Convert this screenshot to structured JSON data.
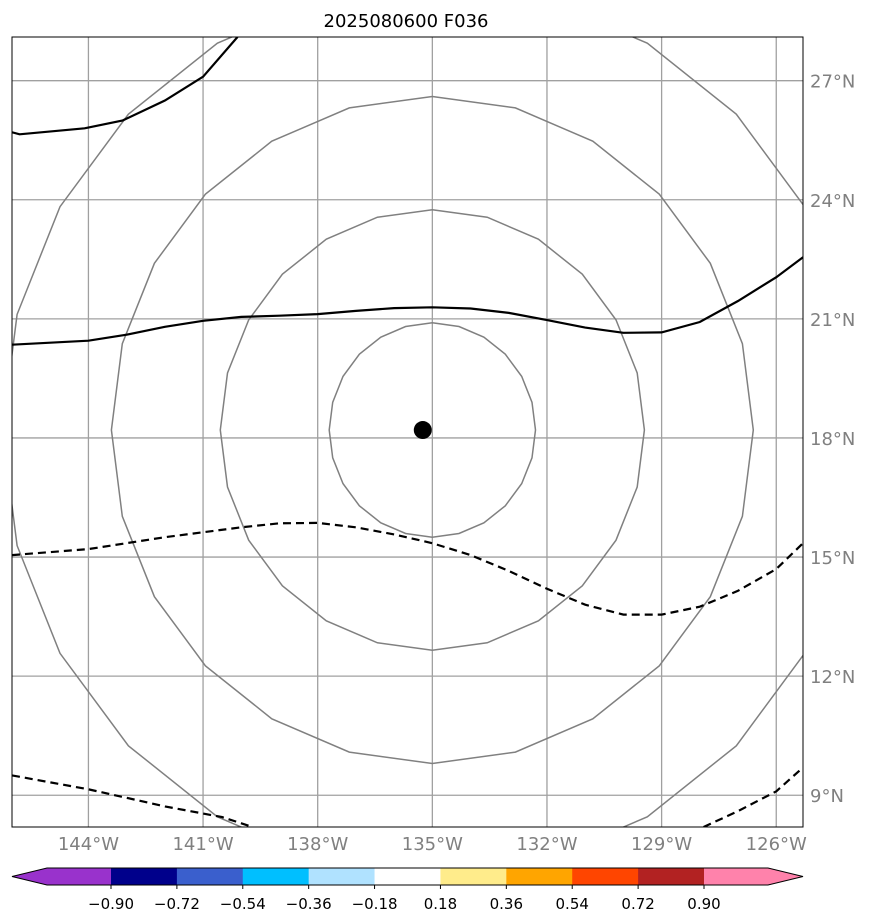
{
  "title": "2025080600 F036",
  "map": {
    "projection": "lat-lon",
    "lon_range": [
      -146,
      -125.3
    ],
    "lat_range": [
      8.2,
      28.1
    ],
    "grid": true,
    "lat_ticks": [
      {
        "value": 9,
        "label": "9°N"
      },
      {
        "value": 12,
        "label": "12°N"
      },
      {
        "value": 15,
        "label": "15°N"
      },
      {
        "value": 18,
        "label": "18°N"
      },
      {
        "value": 21,
        "label": "21°N"
      },
      {
        "value": 24,
        "label": "24°N"
      },
      {
        "value": 27,
        "label": "27°N"
      }
    ],
    "lon_ticks": [
      {
        "value": -144,
        "label": "144°W"
      },
      {
        "value": -141,
        "label": "141°W"
      },
      {
        "value": -138,
        "label": "138°W"
      },
      {
        "value": -135,
        "label": "135°W"
      },
      {
        "value": -132,
        "label": "132°W"
      },
      {
        "value": -129,
        "label": "129°W"
      },
      {
        "value": -126,
        "label": "126°W"
      }
    ],
    "center_marker": {
      "lon": -135.25,
      "lat": 18.2
    },
    "range_rings": {
      "center": {
        "lon": -135,
        "lat": 18.2
      },
      "radii_deg": [
        2.7,
        5.55,
        8.4,
        11.25
      ],
      "color": "#808080"
    },
    "solid_contours": [
      [
        [
          -146,
          25.7
        ],
        [
          -145.8,
          25.65
        ],
        [
          -144.1,
          25.8
        ],
        [
          -143.1,
          26.0
        ],
        [
          -142.0,
          26.5
        ],
        [
          -141.0,
          27.1
        ],
        [
          -140.1,
          28.1
        ]
      ],
      [
        [
          -146,
          20.35
        ],
        [
          -144.0,
          20.45
        ],
        [
          -143.0,
          20.6
        ],
        [
          -142.0,
          20.8
        ],
        [
          -141.0,
          20.95
        ],
        [
          -140.0,
          21.05
        ],
        [
          -139.0,
          21.08
        ],
        [
          -138.0,
          21.12
        ],
        [
          -137.0,
          21.2
        ],
        [
          -136.0,
          21.27
        ],
        [
          -135.0,
          21.29
        ],
        [
          -134.0,
          21.26
        ],
        [
          -133.0,
          21.15
        ],
        [
          -132.0,
          20.97
        ],
        [
          -131.0,
          20.78
        ],
        [
          -130.0,
          20.65
        ],
        [
          -129.0,
          20.66
        ],
        [
          -128.0,
          20.92
        ],
        [
          -127.0,
          21.45
        ],
        [
          -126.0,
          22.05
        ],
        [
          -125.3,
          22.55
        ]
      ]
    ],
    "dashed_contours": [
      [
        [
          -146,
          15.05
        ],
        [
          -144.0,
          15.2
        ],
        [
          -142.0,
          15.5
        ],
        [
          -140.0,
          15.75
        ],
        [
          -139.0,
          15.85
        ],
        [
          -138.0,
          15.86
        ],
        [
          -137.0,
          15.75
        ],
        [
          -136.0,
          15.57
        ],
        [
          -135.0,
          15.35
        ],
        [
          -134.0,
          15.05
        ],
        [
          -133.0,
          14.65
        ],
        [
          -132.0,
          14.2
        ],
        [
          -131.0,
          13.8
        ],
        [
          -130.0,
          13.55
        ],
        [
          -129.0,
          13.55
        ],
        [
          -128.0,
          13.75
        ],
        [
          -127.0,
          14.15
        ],
        [
          -126.0,
          14.7
        ],
        [
          -125.3,
          15.35
        ]
      ],
      [
        [
          -146,
          9.5
        ],
        [
          -144.0,
          9.15
        ],
        [
          -142.0,
          8.72
        ],
        [
          -140.5,
          8.45
        ],
        [
          -139.7,
          8.2
        ]
      ],
      [
        [
          -127.9,
          8.2
        ],
        [
          -127.0,
          8.6
        ],
        [
          -126.0,
          9.1
        ],
        [
          -125.3,
          9.7
        ]
      ]
    ]
  },
  "colorbar": {
    "colors": [
      "#9932cc",
      "#00008b",
      "#3a5fcd",
      "#00bfff",
      "#b0e2ff",
      "#ffffff",
      "#ffec8b",
      "#ffa500",
      "#ff4500",
      "#b22222",
      "#ff82ab"
    ],
    "labels": [
      "−0.90",
      "−0.72",
      "−0.54",
      "−0.36",
      "−0.18",
      "0.18",
      "0.36",
      "0.54",
      "0.72",
      "0.90"
    ]
  }
}
